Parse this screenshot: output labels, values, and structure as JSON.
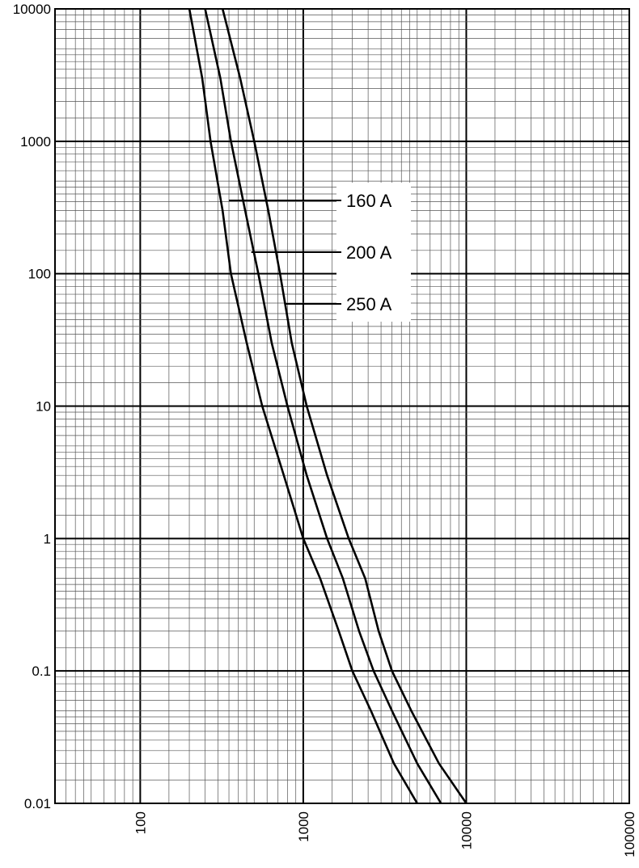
{
  "chart_data": {
    "type": "line",
    "title": "",
    "xlabel": "",
    "ylabel": "",
    "x_scale": "log",
    "y_scale": "log",
    "xlim": [
      30,
      100000
    ],
    "ylim": [
      0.01,
      10000
    ],
    "grid": true,
    "x_tick_labels": [
      "100",
      "1000",
      "10000",
      "100000"
    ],
    "y_tick_labels": [
      "0.01",
      "0.1",
      "1",
      "10",
      "100",
      "1000",
      "10000"
    ],
    "colors": {
      "line": "#000000",
      "grid_major": "#000000",
      "grid_minor": "#555555",
      "background": "#ffffff"
    },
    "legend": {
      "placement": "center",
      "style": "leader-lines"
    },
    "series": [
      {
        "name": "160 A",
        "label_at": {
          "x": 350,
          "y": 400
        },
        "points": [
          [
            200,
            10000
          ],
          [
            240,
            3000
          ],
          [
            270,
            1000
          ],
          [
            320,
            300
          ],
          [
            360,
            100
          ],
          [
            450,
            30
          ],
          [
            560,
            10
          ],
          [
            760,
            3
          ],
          [
            1000,
            1
          ],
          [
            1270,
            0.5
          ],
          [
            1650,
            0.2
          ],
          [
            2000,
            0.1
          ],
          [
            2600,
            0.05
          ],
          [
            3600,
            0.02
          ],
          [
            5000,
            0.01
          ]
        ]
      },
      {
        "name": "200 A",
        "label_at": {
          "x": 480,
          "y": 160
        },
        "points": [
          [
            250,
            10000
          ],
          [
            310,
            3000
          ],
          [
            360,
            1000
          ],
          [
            440,
            300
          ],
          [
            530,
            100
          ],
          [
            640,
            30
          ],
          [
            800,
            10
          ],
          [
            1050,
            3
          ],
          [
            1400,
            1
          ],
          [
            1750,
            0.5
          ],
          [
            2200,
            0.2
          ],
          [
            2700,
            0.1
          ],
          [
            3500,
            0.05
          ],
          [
            5000,
            0.02
          ],
          [
            7000,
            0.01
          ]
        ]
      },
      {
        "name": "250 A",
        "label_at": {
          "x": 780,
          "y": 63
        },
        "points": [
          [
            320,
            10000
          ],
          [
            410,
            3000
          ],
          [
            500,
            1000
          ],
          [
            610,
            300
          ],
          [
            720,
            100
          ],
          [
            850,
            30
          ],
          [
            1050,
            10
          ],
          [
            1400,
            3
          ],
          [
            1900,
            1
          ],
          [
            2400,
            0.5
          ],
          [
            2900,
            0.2
          ],
          [
            3500,
            0.1
          ],
          [
            4600,
            0.05
          ],
          [
            6800,
            0.02
          ],
          [
            10000,
            0.01
          ]
        ]
      }
    ]
  }
}
